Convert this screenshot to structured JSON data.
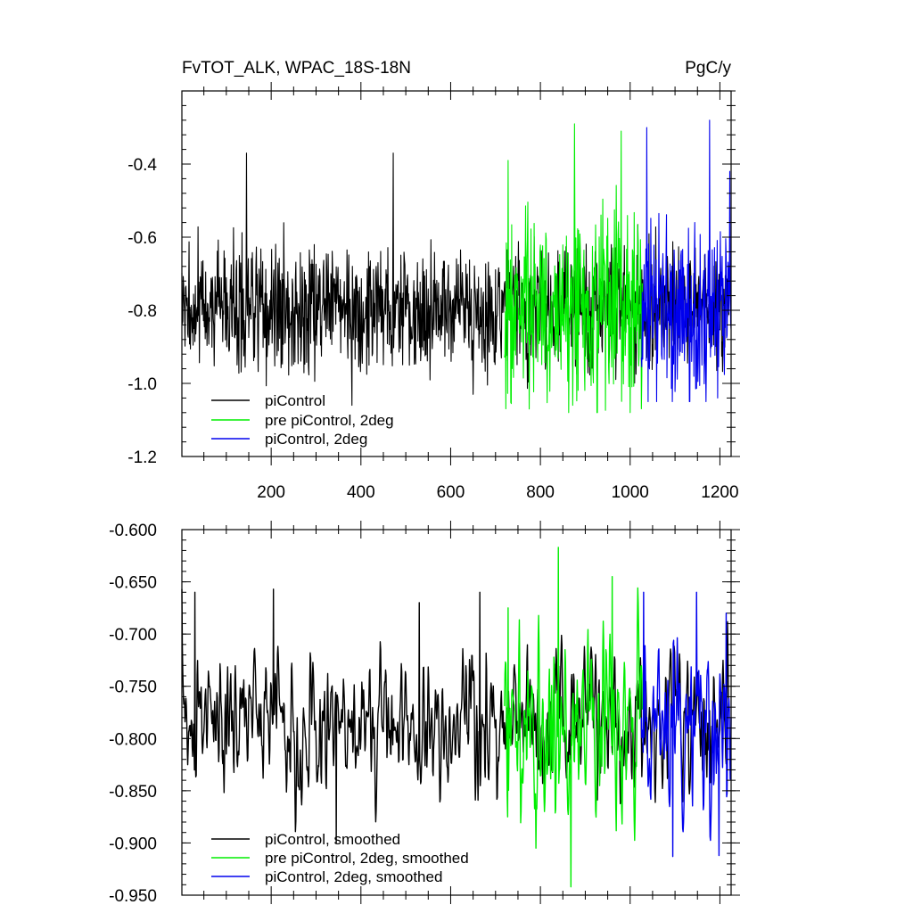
{
  "chart_data": [
    {
      "type": "line",
      "title": "FvTOT_ALK, WPAC_18S-18N",
      "units": "PgC/y",
      "xlim": [
        1,
        1225
      ],
      "ylim": [
        -1.2,
        -0.2
      ],
      "xticks": [
        200,
        400,
        600,
        800,
        1000,
        1200
      ],
      "xtick_labels": [
        "200",
        "400",
        "600",
        "800",
        "1000",
        "1200"
      ],
      "yticks": [
        -1.2,
        -1.0,
        -0.8,
        -0.6,
        -0.4
      ],
      "ytick_labels": [
        "-1.2",
        "-1.0",
        "-0.8",
        "-0.6",
        "-0.4"
      ],
      "grid": false,
      "legend": "bottom-left",
      "series": [
        {
          "name": "piControl",
          "color": "#000000",
          "x_start": 1,
          "x_end": 1220,
          "mean": -0.79,
          "amp": 0.085,
          "min": -1.06,
          "max": -0.37,
          "peaks": [
            [
              145,
              -0.37
            ],
            [
              380,
              -1.06
            ],
            [
              472,
              -0.37
            ],
            [
              650,
              -1.03
            ],
            [
              735,
              -0.93
            ]
          ]
        },
        {
          "name": "pre piControl, 2deg",
          "color": "#00ee00",
          "x_start": 720,
          "x_end": 1027,
          "mean": -0.8,
          "amp": 0.13,
          "min": -1.08,
          "max": -0.29,
          "peaks": [
            [
              728,
              -0.39
            ],
            [
              876,
              -0.29
            ],
            [
              980,
              -0.31
            ],
            [
              1000,
              -1.08
            ],
            [
              775,
              -1.07
            ]
          ]
        },
        {
          "name": "piControl, 2deg",
          "color": "#0000ee",
          "x_start": 1025,
          "x_end": 1225,
          "mean": -0.8,
          "amp": 0.12,
          "min": -1.05,
          "max": -0.28,
          "peaks": [
            [
              1037,
              -0.3
            ],
            [
              1177,
              -0.28
            ],
            [
              1222,
              -0.42
            ],
            [
              1195,
              -1.04
            ],
            [
              1160,
              -0.95
            ]
          ]
        }
      ]
    },
    {
      "type": "line",
      "xlim": [
        1,
        1225
      ],
      "ylim": [
        -0.95,
        -0.6
      ],
      "xticks": [
        200,
        400,
        600,
        800,
        1000,
        1200
      ],
      "yticks": [
        -0.95,
        -0.9,
        -0.85,
        -0.8,
        -0.75,
        -0.7,
        -0.65,
        -0.6
      ],
      "ytick_labels": [
        "-0.950",
        "-0.900",
        "-0.850",
        "-0.800",
        "-0.750",
        "-0.700",
        "-0.650",
        "-0.600"
      ],
      "grid": false,
      "legend": "bottom-left",
      "series": [
        {
          "name": "piControl, smoothed",
          "color": "#000000",
          "x_start": 1,
          "x_end": 1220,
          "mean": -0.785,
          "amp": 0.032,
          "min": -0.9,
          "max": -0.657,
          "peaks": [
            [
              30,
              -0.66
            ],
            [
              205,
              -0.657
            ],
            [
              345,
              -0.9
            ],
            [
              530,
              -0.67
            ],
            [
              665,
              -0.66
            ]
          ]
        },
        {
          "name": "pre piControl, 2deg, smoothed",
          "color": "#00ee00",
          "x_start": 720,
          "x_end": 1027,
          "mean": -0.79,
          "amp": 0.045,
          "min": -0.942,
          "max": -0.617,
          "peaks": [
            [
              728,
              -0.675
            ],
            [
              840,
              -0.617
            ],
            [
              868,
              -0.942
            ],
            [
              960,
              -0.645
            ],
            [
              790,
              -0.905
            ]
          ]
        },
        {
          "name": "piControl, 2deg, smoothed",
          "color": "#0000ee",
          "x_start": 1025,
          "x_end": 1225,
          "mean": -0.79,
          "amp": 0.04,
          "min": -0.913,
          "max": -0.658,
          "peaks": [
            [
              1030,
              -0.66
            ],
            [
              1095,
              -0.913
            ],
            [
              1148,
              -0.66
            ],
            [
              1198,
              -0.912
            ],
            [
              1214,
              -0.68
            ]
          ]
        }
      ]
    }
  ]
}
